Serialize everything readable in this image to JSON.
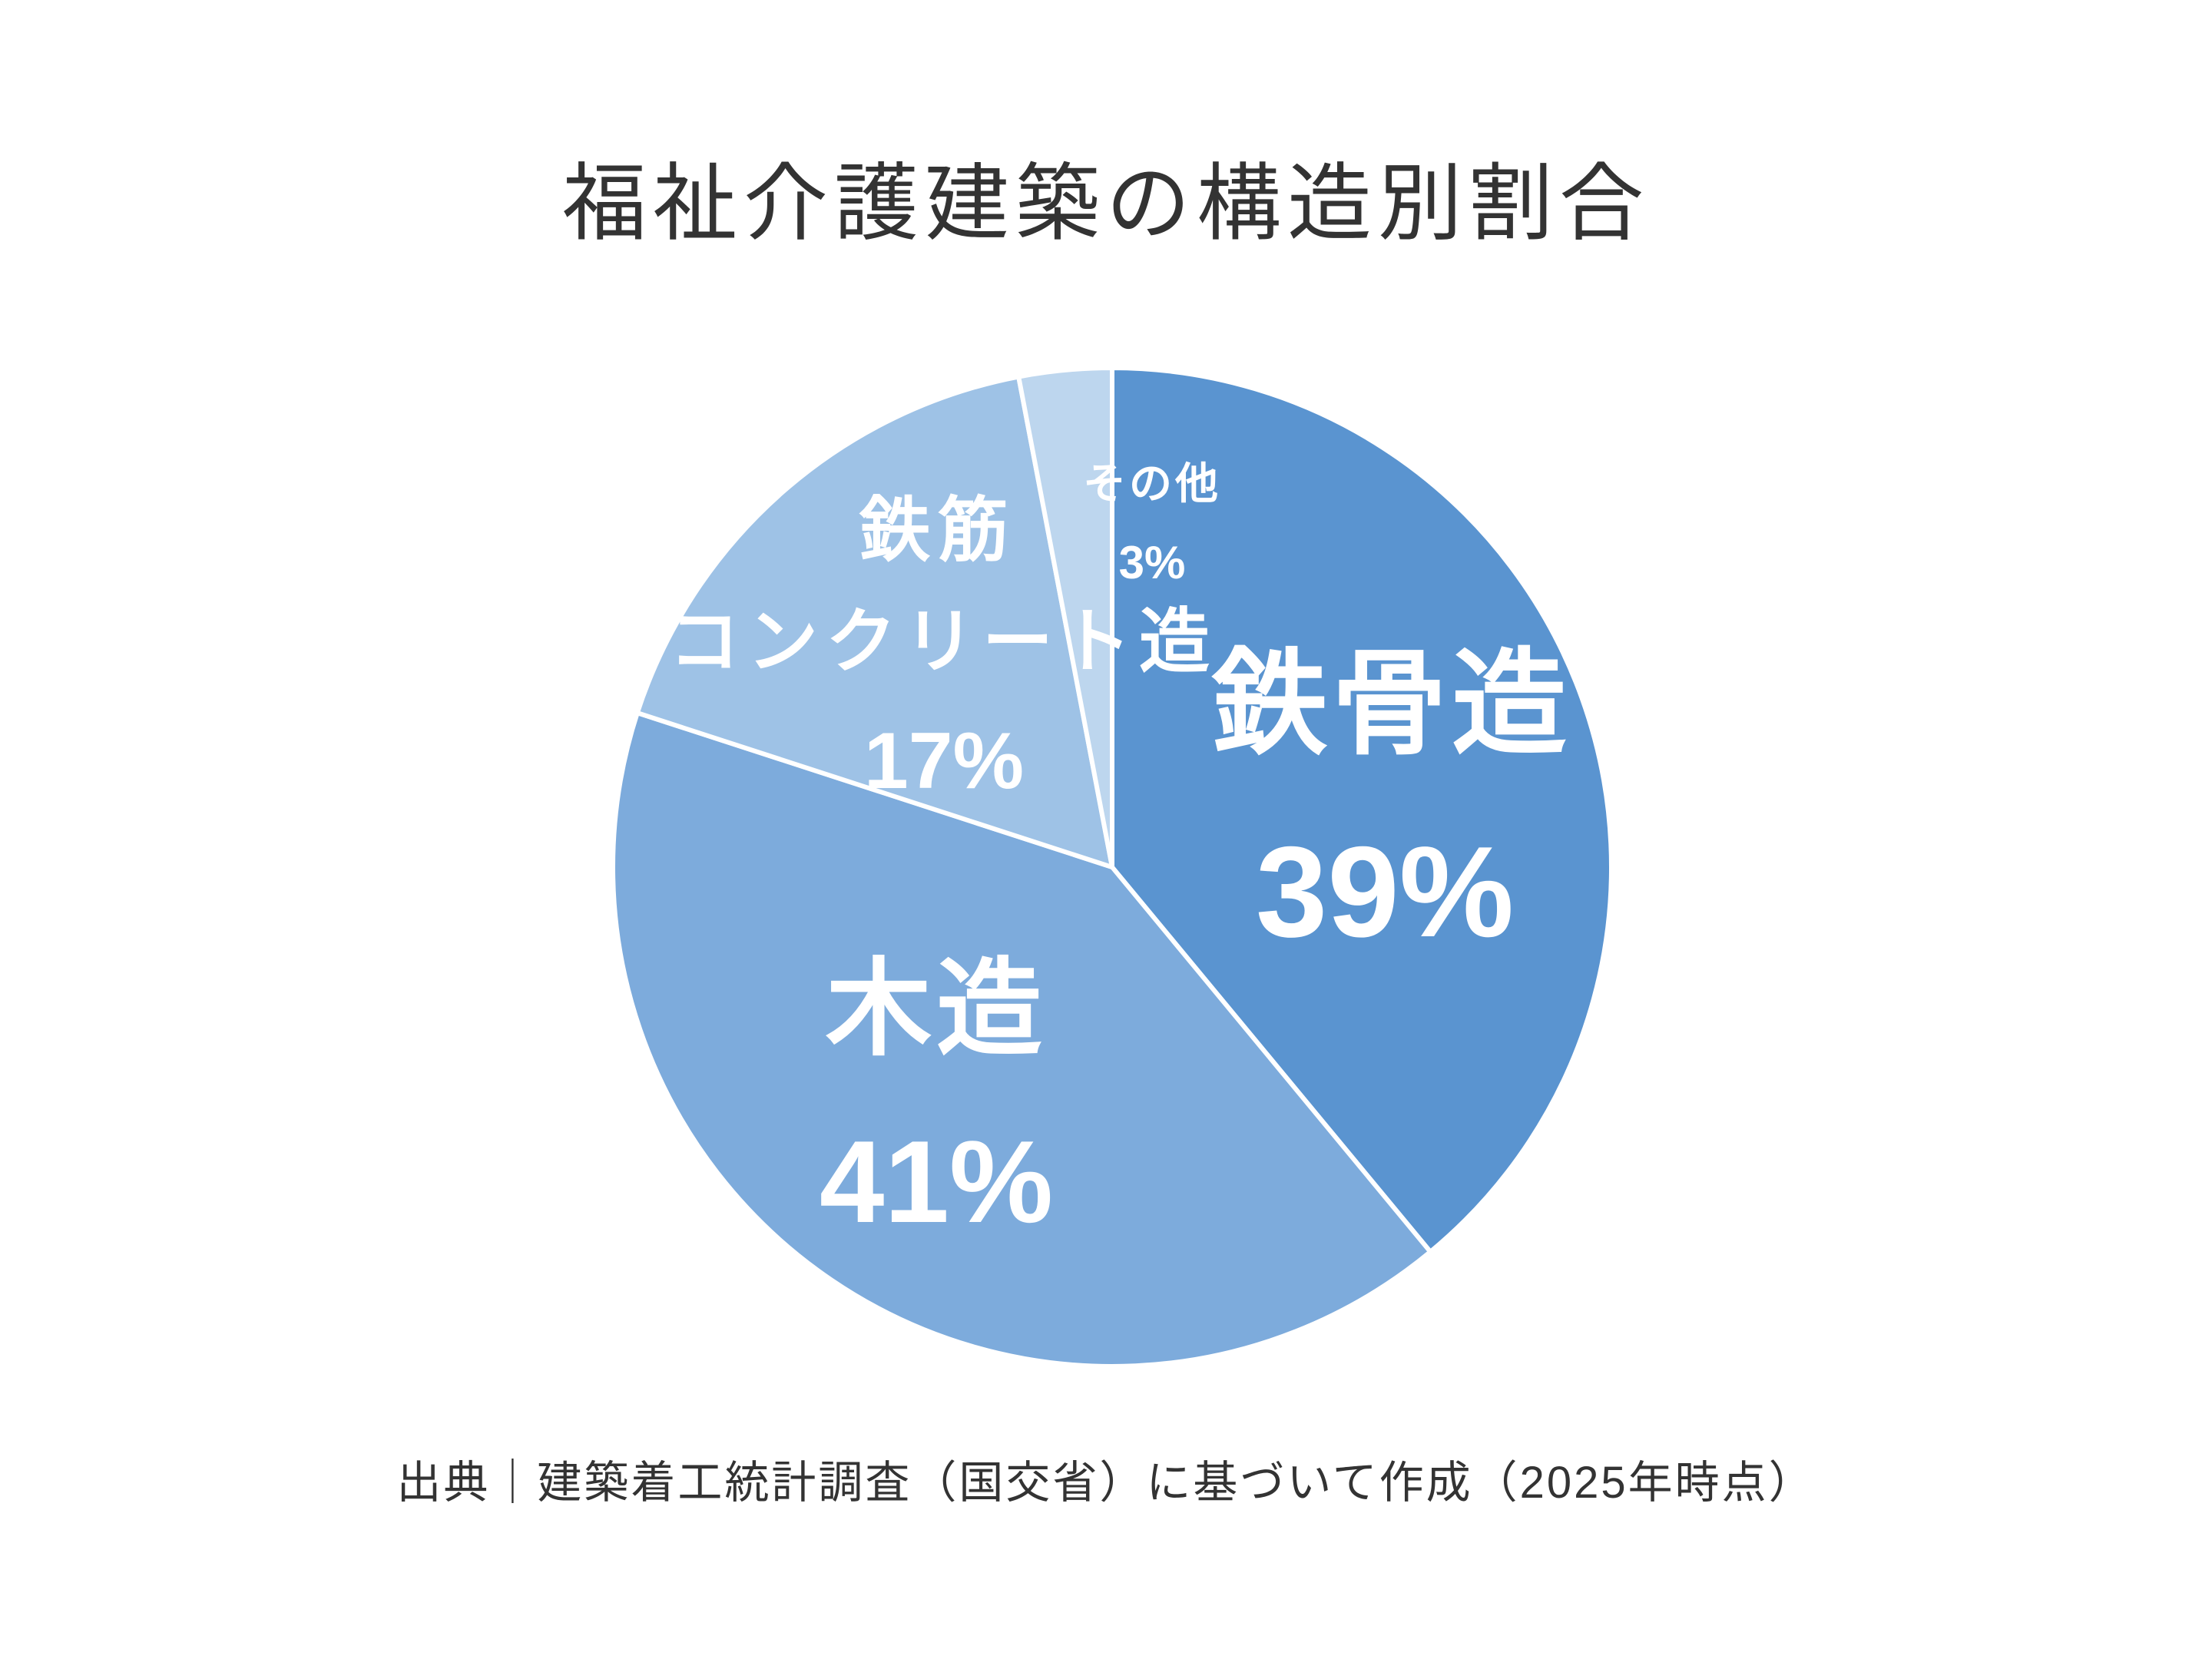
{
  "title": "福祉介護建築の構造別割合",
  "footer": {
    "source_note": "出典｜建築着工統計調査（国交省）に基づいて作成（2025年時点）"
  },
  "chart_data": {
    "type": "pie",
    "title": "福祉介護建築の構造別割合",
    "unit": "%",
    "direction": "clockwise",
    "start_angle": "12-oclock",
    "legend_position": "none-labels-inside",
    "border_color": "#FFFFFF",
    "label_text_color": "#FFFFFF",
    "slices": [
      {
        "label": "鉄骨造",
        "value": 39,
        "value_label": "39%",
        "color": "#5A94D0"
      },
      {
        "label": "木造",
        "value": 41,
        "value_label": "41%",
        "color": "#7DABDC"
      },
      {
        "label": "鉄筋コンクリート造",
        "label_line1": "鉄筋",
        "label_line2": "コンクリート造",
        "value": 17,
        "value_label": "17%",
        "color": "#9EC2E6"
      },
      {
        "label": "その他",
        "value": 3,
        "value_label": "3%",
        "color": "#BDD6EE"
      }
    ]
  }
}
